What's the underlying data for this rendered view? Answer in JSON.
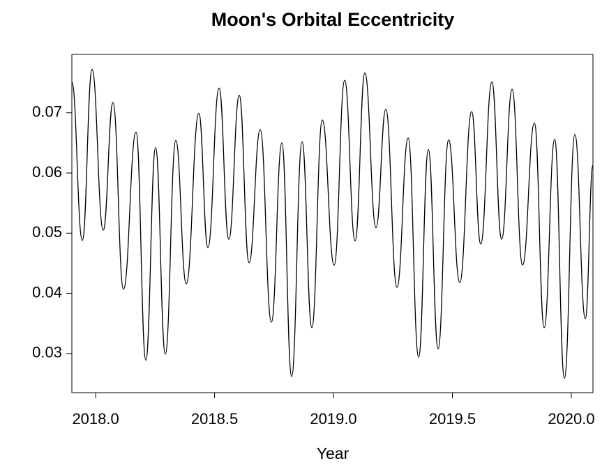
{
  "chart_data": {
    "type": "line",
    "title": "Moon's Orbital Eccentricity",
    "x_label": "Year",
    "x": [
      2017.9,
      2017.944,
      2017.985,
      2018.032,
      2018.073,
      2018.117,
      2018.17,
      2018.211,
      2018.252,
      2018.293,
      2018.337,
      2018.381,
      2018.434,
      2018.472,
      2018.519,
      2018.56,
      2018.604,
      2018.645,
      2018.692,
      2018.739,
      2018.783,
      2018.824,
      2018.868,
      2018.909,
      2018.953,
      2019.003,
      2019.047,
      2019.091,
      2019.132,
      2019.179,
      2019.22,
      2019.267,
      2019.314,
      2019.358,
      2019.399,
      2019.44,
      2019.484,
      2019.531,
      2019.581,
      2019.619,
      2019.666,
      2019.707,
      2019.751,
      2019.795,
      2019.845,
      2019.886,
      2019.93,
      2019.971,
      2020.015,
      2020.059,
      2020.091
    ],
    "series": [
      {
        "color": "#000000",
        "values": [
          0.0751,
          0.0488,
          0.0772,
          0.0505,
          0.0717,
          0.0407,
          0.0668,
          0.0289,
          0.0642,
          0.0299,
          0.0654,
          0.0416,
          0.0699,
          0.0476,
          0.0741,
          0.049,
          0.0729,
          0.0451,
          0.0672,
          0.0352,
          0.065,
          0.0262,
          0.0652,
          0.0343,
          0.0688,
          0.0447,
          0.0754,
          0.0487,
          0.0766,
          0.0509,
          0.0706,
          0.041,
          0.0658,
          0.0294,
          0.0639,
          0.0308,
          0.0655,
          0.0418,
          0.0702,
          0.0482,
          0.0751,
          0.049,
          0.0739,
          0.0447,
          0.0683,
          0.0343,
          0.0656,
          0.0259,
          0.0664,
          0.0358,
          0.0613
        ]
      }
    ],
    "xlim": [
      2017.9,
      2020.091
    ],
    "ylim": [
      0.0235,
      0.0797
    ],
    "xticks": [
      {
        "value": 2018,
        "label": "2018.0"
      },
      {
        "value": 2018.5,
        "label": "2018.5"
      },
      {
        "value": 2019,
        "label": "2019.0"
      },
      {
        "value": 2019.5,
        "label": "2019.5"
      },
      {
        "value": 2020,
        "label": "2020.0"
      }
    ],
    "yticks": [
      0.03,
      0.04,
      0.05,
      0.06,
      0.07
    ]
  }
}
